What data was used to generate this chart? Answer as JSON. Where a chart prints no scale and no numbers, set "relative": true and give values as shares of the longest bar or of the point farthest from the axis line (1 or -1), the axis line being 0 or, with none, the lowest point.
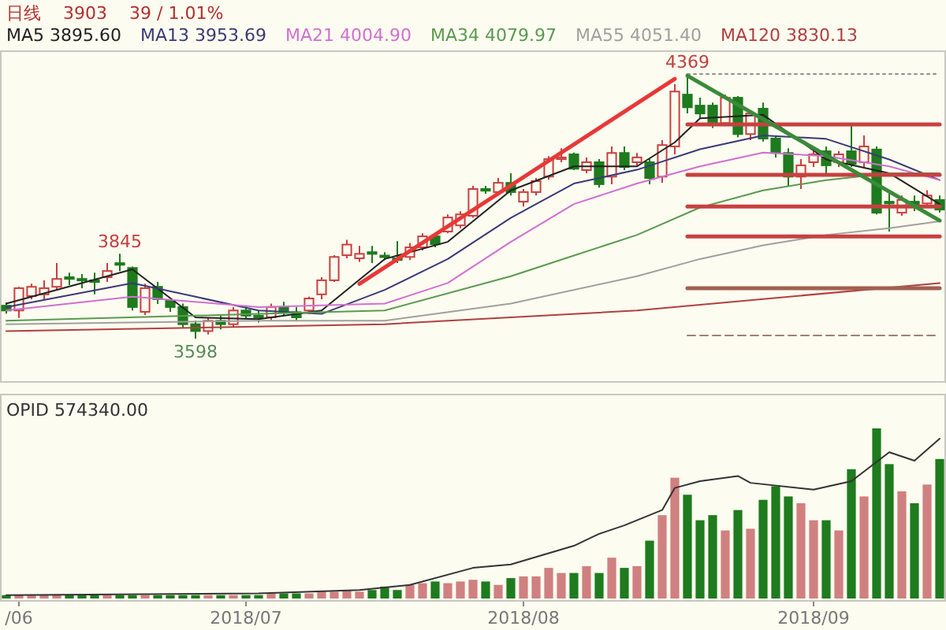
{
  "chart_data": [
    {
      "type": "candlestick",
      "tick_labels": false,
      "legend": "top",
      "categories": [
        null,
        null,
        null,
        null,
        null,
        null,
        null,
        null,
        null,
        null,
        null,
        null,
        null,
        null,
        null,
        null,
        null,
        null,
        null,
        null,
        null,
        null,
        null,
        null,
        null,
        null,
        null,
        null,
        null,
        null,
        null,
        null,
        null,
        null,
        null,
        null,
        null,
        null,
        null,
        null,
        null,
        null,
        null,
        null,
        null,
        null,
        null,
        null,
        null,
        null,
        null,
        null,
        null,
        null,
        null,
        null,
        null,
        null,
        null,
        null,
        null,
        null,
        null,
        null,
        null,
        null,
        null,
        null,
        null,
        null,
        null,
        null,
        null,
        null,
        null
      ],
      "ohlc": [
        [
          3694,
          3703,
          3671,
          3680
        ],
        [
          3680,
          3749,
          3658,
          3745
        ],
        [
          3722,
          3758,
          3713,
          3749
        ],
        [
          3727,
          3768,
          3713,
          3745
        ],
        [
          3749,
          3818,
          3740,
          3772
        ],
        [
          3777,
          3790,
          3754,
          3772
        ],
        [
          3772,
          3786,
          3745,
          3768
        ],
        [
          3768,
          3790,
          3727,
          3763
        ],
        [
          3777,
          3818,
          3763,
          3795
        ],
        [
          3818,
          3845,
          3795,
          3813
        ],
        [
          3804,
          3808,
          3680,
          3690
        ],
        [
          3676,
          3758,
          3667,
          3745
        ],
        [
          3749,
          3763,
          3699,
          3713
        ],
        [
          3708,
          3713,
          3676,
          3690
        ],
        [
          3690,
          3700,
          3630,
          3640
        ],
        [
          3640,
          3650,
          3598,
          3620
        ],
        [
          3620,
          3660,
          3610,
          3650
        ],
        [
          3650,
          3665,
          3625,
          3640
        ],
        [
          3640,
          3690,
          3630,
          3680
        ],
        [
          3680,
          3695,
          3655,
          3665
        ],
        [
          3665,
          3680,
          3645,
          3660
        ],
        [
          3660,
          3700,
          3650,
          3690
        ],
        [
          3690,
          3705,
          3665,
          3675
        ],
        [
          3675,
          3690,
          3650,
          3660
        ],
        [
          3680,
          3720,
          3670,
          3715
        ],
        [
          3727,
          3777,
          3713,
          3768
        ],
        [
          3768,
          3841,
          3763,
          3836
        ],
        [
          3841,
          3886,
          3832,
          3872
        ],
        [
          3832,
          3868,
          3822,
          3845
        ],
        [
          3850,
          3868,
          3818,
          3845
        ],
        [
          3840,
          3850,
          3827,
          3836
        ],
        [
          3832,
          3882,
          3818,
          3827
        ],
        [
          3836,
          3877,
          3827,
          3864
        ],
        [
          3864,
          3905,
          3855,
          3896
        ],
        [
          3896,
          3905,
          3864,
          3873
        ],
        [
          3910,
          3960,
          3905,
          3951
        ],
        [
          3928,
          3969,
          3920,
          3960
        ],
        [
          3956,
          4043,
          3950,
          4034
        ],
        [
          4034,
          4043,
          4020,
          4029
        ],
        [
          4025,
          4066,
          4015,
          4052
        ],
        [
          4052,
          4080,
          4015,
          4025
        ],
        [
          3997,
          4034,
          3983,
          4025
        ],
        [
          4025,
          4066,
          4015,
          4057
        ],
        [
          4070,
          4130,
          4061,
          4121
        ],
        [
          4121,
          4153,
          4112,
          4126
        ],
        [
          4135,
          4140,
          4089,
          4093
        ],
        [
          4089,
          4126,
          4080,
          4112
        ],
        [
          4112,
          4121,
          4038,
          4048
        ],
        [
          4070,
          4158,
          4048,
          4139
        ],
        [
          4139,
          4158,
          4089,
          4098
        ],
        [
          4112,
          4139,
          4103,
          4126
        ],
        [
          4112,
          4121,
          4048,
          4066
        ],
        [
          4070,
          4176,
          4052,
          4162
        ],
        [
          4158,
          4340,
          4135,
          4318
        ],
        [
          4309,
          4369,
          4254,
          4272
        ],
        [
          4277,
          4300,
          4240,
          4254
        ],
        [
          4277,
          4286,
          4212,
          4226
        ],
        [
          4226,
          4309,
          4217,
          4300
        ],
        [
          4300,
          4305,
          4185,
          4194
        ],
        [
          4194,
          4263,
          4176,
          4254
        ],
        [
          4268,
          4286,
          4172,
          4181
        ],
        [
          4181,
          4190,
          4126,
          4139
        ],
        [
          4139,
          4153,
          4043,
          4070
        ],
        [
          4070,
          4121,
          4034,
          4103
        ],
        [
          4112,
          4144,
          4098,
          4135
        ],
        [
          4144,
          4158,
          4080,
          4103
        ],
        [
          4112,
          4144,
          4098,
          4135
        ],
        [
          4144,
          4226,
          4098,
          4107
        ],
        [
          4112,
          4190,
          4098,
          4158
        ],
        [
          4149,
          4158,
          3960,
          3965
        ],
        [
          3997,
          4020,
          3910,
          3992
        ],
        [
          3965,
          4015,
          3956,
          4002
        ],
        [
          3997,
          4015,
          3970,
          3988
        ],
        [
          3992,
          4030,
          3983,
          4015
        ],
        [
          4002,
          4015,
          3965,
          3974
        ]
      ],
      "colors": [
        "#1e7b1e",
        "#c84040",
        "#c84040",
        "#c84040",
        "#c84040",
        "#1e7b1e",
        "#1e7b1e",
        "#1e7b1e",
        "#c84040",
        "#1e7b1e",
        "#1e7b1e",
        "#c84040",
        "#1e7b1e",
        "#1e7b1e",
        "#1e7b1e",
        "#1e7b1e",
        "#c84040",
        "#1e7b1e",
        "#c84040",
        "#1e7b1e",
        "#1e7b1e",
        "#c84040",
        "#1e7b1e",
        "#1e7b1e",
        "#c84040",
        "#c84040",
        "#c84040",
        "#c84040",
        "#c84040",
        "#1e7b1e",
        "#1e7b1e",
        "#1e7b1e",
        "#c84040",
        "#c84040",
        "#1e7b1e",
        "#c84040",
        "#c84040",
        "#c84040",
        "#1e7b1e",
        "#c84040",
        "#1e7b1e",
        "#c84040",
        "#c84040",
        "#c84040",
        "#c84040",
        "#1e7b1e",
        "#c84040",
        "#1e7b1e",
        "#c84040",
        "#1e7b1e",
        "#c84040",
        "#1e7b1e",
        "#c84040",
        "#c84040",
        "#1e7b1e",
        "#1e7b1e",
        "#1e7b1e",
        "#c84040",
        "#1e7b1e",
        "#c84040",
        "#1e7b1e",
        "#1e7b1e",
        "#1e7b1e",
        "#c84040",
        "#c84040",
        "#1e7b1e",
        "#c84040",
        "#1e7b1e",
        "#c84040",
        "#1e7b1e",
        "#1e7b1e",
        "#c84040",
        "#1e7b1e",
        "#c84040",
        "#1e7b1e"
      ],
      "series": [
        {
          "type": "line",
          "name": "MA5 3895.60",
          "color": "#222222",
          "values": [
            3700,
            null,
            null,
            null,
            null,
            3750,
            null,
            null,
            null,
            null,
            3800,
            null,
            null,
            null,
            null,
            3660,
            null,
            null,
            null,
            null,
            3655,
            null,
            null,
            null,
            null,
            3680,
            null,
            null,
            null,
            null,
            3830,
            null,
            null,
            null,
            null,
            3880,
            null,
            null,
            null,
            null,
            4030,
            null,
            null,
            null,
            null,
            4100,
            null,
            null,
            null,
            null,
            4100,
            null,
            null,
            4170,
            null,
            4240,
            null,
            null,
            null,
            null,
            4250,
            null,
            null,
            null,
            null,
            4120,
            null,
            null,
            null,
            null,
            4080,
            null,
            null,
            null,
            3990
          ]
        },
        {
          "type": "line",
          "name": "MA13 3953.69",
          "color": "#3a3a78",
          "values": [
            3690,
            null,
            null,
            null,
            null,
            null,
            null,
            null,
            null,
            null,
            3760,
            null,
            null,
            null,
            null,
            3720,
            null,
            null,
            null,
            null,
            3680,
            null,
            null,
            null,
            null,
            3670,
            null,
            null,
            null,
            null,
            3740,
            null,
            null,
            null,
            null,
            3830,
            null,
            null,
            null,
            null,
            3950,
            null,
            null,
            null,
            null,
            4050,
            null,
            null,
            null,
            null,
            4090,
            null,
            null,
            null,
            null,
            4150,
            null,
            null,
            null,
            null,
            4190,
            null,
            null,
            null,
            null,
            4180,
            null,
            null,
            null,
            null,
            4120,
            null,
            null,
            null,
            4060
          ]
        },
        {
          "type": "line",
          "name": "MA21 4004.90",
          "color": "#d070d0",
          "values": [
            3680,
            null,
            null,
            null,
            null,
            null,
            null,
            null,
            null,
            null,
            3720,
            null,
            null,
            null,
            null,
            null,
            null,
            null,
            null,
            null,
            3690,
            null,
            null,
            null,
            null,
            null,
            null,
            null,
            null,
            null,
            3700,
            null,
            null,
            null,
            null,
            3760,
            null,
            null,
            null,
            null,
            3880,
            null,
            null,
            null,
            null,
            3990,
            null,
            null,
            null,
            null,
            4050,
            null,
            null,
            null,
            null,
            4100,
            null,
            null,
            null,
            null,
            4140,
            null,
            null,
            null,
            null,
            4130,
            null,
            null,
            null,
            null,
            4100,
            null,
            null,
            null,
            4060
          ]
        },
        {
          "type": "line",
          "name": "MA34 4079.97",
          "color": "#5a9a50",
          "values": [
            3650,
            null,
            null,
            null,
            null,
            null,
            null,
            null,
            null,
            null,
            null,
            null,
            null,
            null,
            null,
            null,
            null,
            null,
            null,
            null,
            3670,
            null,
            null,
            null,
            null,
            null,
            null,
            null,
            null,
            null,
            3680,
            null,
            null,
            null,
            null,
            null,
            null,
            null,
            null,
            null,
            3780,
            null,
            null,
            null,
            null,
            3840,
            null,
            null,
            null,
            null,
            3900,
            null,
            null,
            null,
            null,
            3980,
            null,
            null,
            null,
            null,
            4030,
            null,
            null,
            null,
            null,
            4060,
            null,
            null,
            null,
            null,
            4080,
            null,
            null,
            null,
            4080
          ]
        },
        {
          "type": "line",
          "name": "MA55 4051.40",
          "color": "#a0a0a0",
          "values": [
            3640,
            null,
            null,
            null,
            null,
            null,
            null,
            null,
            null,
            null,
            null,
            null,
            null,
            null,
            null,
            null,
            null,
            null,
            null,
            null,
            3650,
            null,
            null,
            null,
            null,
            null,
            null,
            null,
            null,
            null,
            3650,
            null,
            null,
            null,
            null,
            null,
            null,
            null,
            null,
            null,
            3700,
            null,
            null,
            null,
            null,
            null,
            null,
            null,
            null,
            null,
            3780,
            null,
            null,
            null,
            null,
            3830,
            null,
            null,
            null,
            null,
            3870,
            null,
            null,
            null,
            null,
            3900,
            null,
            null,
            null,
            null,
            3920,
            null,
            null,
            null,
            3940
          ]
        },
        {
          "type": "line",
          "name": "MA120 3830.13",
          "color": "#b04040",
          "values": [
            3620,
            null,
            null,
            null,
            null,
            null,
            null,
            null,
            null,
            null,
            null,
            null,
            null,
            null,
            null,
            null,
            null,
            null,
            null,
            null,
            null,
            null,
            null,
            null,
            null,
            null,
            null,
            null,
            null,
            null,
            3640,
            null,
            null,
            null,
            null,
            null,
            null,
            null,
            null,
            null,
            null,
            null,
            null,
            null,
            null,
            null,
            null,
            null,
            null,
            null,
            3680,
            null,
            null,
            null,
            null,
            null,
            null,
            null,
            null,
            null,
            null,
            null,
            null,
            null,
            null,
            null,
            null,
            null,
            null,
            null,
            null,
            null,
            null,
            null,
            3760
          ]
        },
        {
          "type": "line",
          "color": "#c84040",
          "values": [
            null,
            null,
            null,
            null,
            null,
            null,
            null,
            null,
            null,
            null,
            null,
            null,
            null,
            null,
            null,
            null,
            null,
            null,
            null,
            null,
            null,
            null,
            null,
            null,
            null,
            null,
            null,
            null,
            null,
            null,
            null,
            null,
            null,
            null,
            null,
            null,
            null,
            null,
            null,
            null,
            null,
            null,
            null,
            null,
            null,
            null,
            null,
            null,
            null,
            null,
            null,
            null,
            null,
            null,
            4222,
            4222,
            4222,
            4222,
            4222,
            4222,
            4222,
            4222,
            4222,
            4222,
            4222,
            4222,
            4222,
            4222,
            4222,
            4222,
            4222,
            4222,
            4222,
            4222,
            4222
          ]
        },
        {
          "type": "line",
          "color": "#c84040",
          "values": [
            null,
            null,
            null,
            null,
            null,
            null,
            null,
            null,
            null,
            null,
            null,
            null,
            null,
            null,
            null,
            null,
            null,
            null,
            null,
            null,
            null,
            null,
            null,
            null,
            null,
            null,
            null,
            null,
            null,
            null,
            null,
            null,
            null,
            null,
            null,
            null,
            null,
            null,
            null,
            null,
            null,
            null,
            null,
            null,
            null,
            null,
            null,
            null,
            null,
            null,
            null,
            null,
            null,
            null,
            4075,
            4075,
            4075,
            4075,
            4075,
            4075,
            4075,
            4075,
            4075,
            4075,
            4075,
            4075,
            4075,
            4075,
            4075,
            4075,
            4075,
            4075,
            4075,
            4075,
            4075
          ]
        },
        {
          "type": "line",
          "color": "#c84040",
          "values": [
            null,
            null,
            null,
            null,
            null,
            null,
            null,
            null,
            null,
            null,
            null,
            null,
            null,
            null,
            null,
            null,
            null,
            null,
            null,
            null,
            null,
            null,
            null,
            null,
            null,
            null,
            null,
            null,
            null,
            null,
            null,
            null,
            null,
            null,
            null,
            null,
            null,
            null,
            null,
            null,
            null,
            null,
            null,
            null,
            null,
            null,
            null,
            null,
            null,
            null,
            null,
            null,
            null,
            null,
            3983,
            3983,
            3983,
            3983,
            3983,
            3983,
            3983,
            3983,
            3983,
            3983,
            3983,
            3983,
            3983,
            3983,
            3983,
            3983,
            3983,
            3983,
            3983,
            3983,
            3983
          ]
        },
        {
          "type": "line",
          "color": "#c84040",
          "values": [
            null,
            null,
            null,
            null,
            null,
            null,
            null,
            null,
            null,
            null,
            null,
            null,
            null,
            null,
            null,
            null,
            null,
            null,
            null,
            null,
            null,
            null,
            null,
            null,
            null,
            null,
            null,
            null,
            null,
            null,
            null,
            null,
            null,
            null,
            null,
            null,
            null,
            null,
            null,
            null,
            null,
            null,
            null,
            null,
            null,
            null,
            null,
            null,
            null,
            null,
            null,
            null,
            null,
            null,
            3896,
            3896,
            3896,
            3896,
            3896,
            3896,
            3896,
            3896,
            3896,
            3896,
            3896,
            3896,
            3896,
            3896,
            3896,
            3896,
            3896,
            3896,
            3896,
            3896,
            3896
          ]
        },
        {
          "type": "line",
          "color": "#a06050",
          "values": [
            null,
            null,
            null,
            null,
            null,
            null,
            null,
            null,
            null,
            null,
            null,
            null,
            null,
            null,
            null,
            null,
            null,
            null,
            null,
            null,
            null,
            null,
            null,
            null,
            null,
            null,
            null,
            null,
            null,
            null,
            null,
            null,
            null,
            null,
            null,
            null,
            null,
            null,
            null,
            null,
            null,
            null,
            null,
            null,
            null,
            null,
            null,
            null,
            null,
            null,
            null,
            null,
            null,
            null,
            3745,
            3745,
            3745,
            3745,
            3745,
            3745,
            3745,
            3745,
            3745,
            3745,
            3745,
            3745,
            3745,
            3745,
            3745,
            3745,
            3745,
            3745,
            3745,
            3745,
            3745
          ]
        },
        {
          "type": "line",
          "color": "#a08070",
          "line_style": "dashed",
          "values": [
            null,
            null,
            null,
            null,
            null,
            null,
            null,
            null,
            null,
            null,
            null,
            null,
            null,
            null,
            null,
            null,
            null,
            null,
            null,
            null,
            null,
            null,
            null,
            null,
            null,
            null,
            null,
            null,
            null,
            null,
            null,
            null,
            null,
            null,
            null,
            null,
            null,
            null,
            null,
            null,
            null,
            null,
            null,
            null,
            null,
            null,
            null,
            null,
            null,
            null,
            null,
            null,
            null,
            null,
            3607,
            3607,
            3607,
            3607,
            3607,
            3607,
            3607,
            3607,
            3607,
            3607,
            3607,
            3607,
            3607,
            3607,
            3607,
            3607,
            3607,
            3607,
            3607,
            3607,
            3607
          ]
        },
        {
          "type": "line",
          "color": "#909090",
          "line_style": "dotted",
          "values": [
            null,
            null,
            null,
            null,
            null,
            null,
            null,
            null,
            null,
            null,
            null,
            null,
            null,
            null,
            null,
            null,
            null,
            null,
            null,
            null,
            null,
            null,
            null,
            null,
            null,
            null,
            null,
            null,
            null,
            null,
            null,
            null,
            null,
            null,
            null,
            null,
            null,
            null,
            null,
            null,
            null,
            null,
            null,
            null,
            null,
            null,
            null,
            null,
            null,
            null,
            null,
            null,
            null,
            null,
            4369,
            4369,
            4369,
            4369,
            4369,
            4369,
            4369,
            4369,
            4369,
            4369,
            4369,
            4369,
            4369,
            4369,
            4369,
            4369,
            4369,
            4369,
            4369,
            4369,
            4369
          ]
        },
        {
          "type": "line",
          "color": "#e83838",
          "values": [
            null,
            null,
            null,
            null,
            null,
            null,
            null,
            null,
            null,
            null,
            null,
            null,
            null,
            null,
            null,
            null,
            null,
            null,
            null,
            null,
            null,
            null,
            null,
            null,
            null,
            null,
            null,
            null,
            3758,
            null,
            null,
            null,
            null,
            null,
            null,
            null,
            null,
            null,
            null,
            null,
            null,
            null,
            null,
            null,
            null,
            null,
            null,
            null,
            null,
            null,
            null,
            null,
            null,
            4355,
            null,
            null,
            null,
            null,
            null,
            null,
            null,
            null,
            null,
            null,
            null,
            null,
            null,
            null,
            null,
            null,
            null,
            null,
            null,
            null,
            null
          ]
        },
        {
          "type": "line",
          "color": "#3a8a3a",
          "values": [
            null,
            null,
            null,
            null,
            null,
            null,
            null,
            null,
            null,
            null,
            null,
            null,
            null,
            null,
            null,
            null,
            null,
            null,
            null,
            null,
            null,
            null,
            null,
            null,
            null,
            null,
            null,
            null,
            null,
            null,
            null,
            null,
            null,
            null,
            null,
            null,
            null,
            null,
            null,
            null,
            null,
            null,
            null,
            null,
            null,
            null,
            null,
            null,
            null,
            null,
            null,
            null,
            null,
            null,
            4364,
            null,
            null,
            null,
            null,
            null,
            null,
            null,
            null,
            null,
            null,
            null,
            null,
            null,
            null,
            null,
            null,
            null,
            null,
            null,
            3942
          ]
        }
      ],
      "annotations": [
        "日线",
        "3903",
        "39 / 1.01%",
        {
          "text": "4369",
          "y": 4369
        },
        {
          "text": "3845",
          "y": 3845
        },
        {
          "text": "3598",
          "y": 3598
        }
      ]
    },
    {
      "type": "bar",
      "relative": true,
      "tick_labels": "x",
      "categories": [
        null,
        "/06",
        null,
        null,
        null,
        null,
        null,
        null,
        null,
        null,
        null,
        null,
        null,
        null,
        null,
        null,
        null,
        null,
        null,
        "2018/07",
        null,
        null,
        null,
        null,
        null,
        null,
        null,
        null,
        null,
        null,
        null,
        null,
        null,
        null,
        null,
        null,
        null,
        null,
        null,
        null,
        null,
        "2018/08",
        null,
        null,
        null,
        null,
        null,
        null,
        null,
        null,
        null,
        null,
        null,
        null,
        null,
        null,
        null,
        null,
        null,
        null,
        null,
        null,
        null,
        null,
        "2018/09",
        null,
        null,
        null,
        null,
        null,
        null,
        null,
        null,
        null,
        null
      ],
      "series": [
        {
          "type": "bar",
          "values": [
            0.02,
            0.02,
            0.02,
            0.02,
            0.02,
            0.02,
            0.02,
            0.02,
            0.02,
            0.02,
            0.02,
            0.02,
            0.02,
            0.02,
            0.02,
            0.02,
            0.02,
            0.02,
            0.02,
            0.02,
            0.02,
            0.03,
            0.03,
            0.03,
            0.03,
            0.04,
            0.04,
            0.05,
            0.04,
            0.05,
            0.07,
            0.05,
            0.08,
            0.09,
            0.1,
            0.09,
            0.1,
            0.11,
            0.1,
            0.08,
            0.12,
            0.13,
            0.13,
            0.18,
            0.15,
            0.15,
            0.19,
            0.15,
            0.24,
            0.18,
            0.19,
            0.34,
            0.49,
            0.71,
            0.61,
            0.46,
            0.49,
            0.4,
            0.52,
            0.41,
            0.58,
            0.66,
            0.6,
            0.56,
            0.46,
            0.46,
            0.4,
            0.76,
            0.6,
            1,
            0.79,
            0.63,
            0.56,
            0.67,
            0.82
          ],
          "colors": [
            "#1e7b1e",
            "#d08080",
            "#d08080",
            "#d08080",
            "#d08080",
            "#1e7b1e",
            "#1e7b1e",
            "#1e7b1e",
            "#d08080",
            "#1e7b1e",
            "#1e7b1e",
            "#d08080",
            "#1e7b1e",
            "#1e7b1e",
            "#1e7b1e",
            "#1e7b1e",
            "#d08080",
            "#1e7b1e",
            "#d08080",
            "#1e7b1e",
            "#1e7b1e",
            "#d08080",
            "#1e7b1e",
            "#1e7b1e",
            "#d08080",
            "#d08080",
            "#d08080",
            "#d08080",
            "#d08080",
            "#1e7b1e",
            "#1e7b1e",
            "#1e7b1e",
            "#d08080",
            "#d08080",
            "#1e7b1e",
            "#d08080",
            "#d08080",
            "#d08080",
            "#1e7b1e",
            "#d08080",
            "#1e7b1e",
            "#d08080",
            "#d08080",
            "#d08080",
            "#d08080",
            "#1e7b1e",
            "#d08080",
            "#1e7b1e",
            "#d08080",
            "#1e7b1e",
            "#d08080",
            "#1e7b1e",
            "#d08080",
            "#d08080",
            "#1e7b1e",
            "#1e7b1e",
            "#1e7b1e",
            "#d08080",
            "#1e7b1e",
            "#d08080",
            "#1e7b1e",
            "#1e7b1e",
            "#1e7b1e",
            "#d08080",
            "#d08080",
            "#1e7b1e",
            "#d08080",
            "#1e7b1e",
            "#d08080",
            "#1e7b1e",
            "#1e7b1e",
            "#d08080",
            "#1e7b1e",
            "#d08080",
            "#1e7b1e"
          ]
        },
        {
          "type": "line",
          "color": "#333333",
          "values": [
            0.02,
            null,
            null,
            null,
            null,
            null,
            null,
            null,
            null,
            null,
            null,
            null,
            null,
            null,
            null,
            null,
            null,
            null,
            null,
            null,
            0.03,
            null,
            null,
            null,
            null,
            null,
            null,
            null,
            0.05,
            null,
            null,
            null,
            0.08,
            null,
            null,
            null,
            null,
            0.18,
            null,
            null,
            0.2,
            null,
            null,
            null,
            null,
            0.31,
            null,
            0.38,
            null,
            0.43,
            null,
            null,
            0.52,
            0.65,
            null,
            0.69,
            null,
            null,
            0.72,
            0.68,
            null,
            null,
            null,
            null,
            0.64,
            null,
            null,
            0.69,
            null,
            null,
            0.86,
            null,
            0.81,
            null,
            0.94
          ]
        }
      ],
      "annotations": [
        "OPID 574340.00"
      ]
    }
  ]
}
